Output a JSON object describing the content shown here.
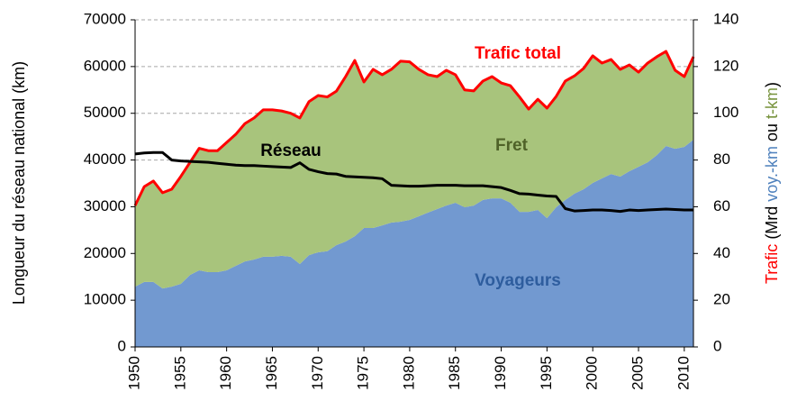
{
  "chart_data": {
    "type": "stacked-area-line",
    "ylabel": "Longueur du réseau national (km)",
    "y2label_parts": [
      {
        "text": "Trafic",
        "color": "#ff0000"
      },
      {
        "text": " (Mrd ",
        "color": "#000000"
      },
      {
        "text": "voy.-km",
        "color": "#4f81bd"
      },
      {
        "text": " ou ",
        "color": "#000000"
      },
      {
        "text": "t-km",
        "color": "#77933c"
      },
      {
        "text": ")",
        "color": "#000000"
      }
    ],
    "x": [
      1950,
      1951,
      1952,
      1953,
      1954,
      1955,
      1956,
      1957,
      1958,
      1959,
      1960,
      1961,
      1962,
      1963,
      1964,
      1965,
      1966,
      1967,
      1968,
      1969,
      1970,
      1971,
      1972,
      1973,
      1974,
      1975,
      1976,
      1977,
      1978,
      1979,
      1980,
      1981,
      1982,
      1983,
      1984,
      1985,
      1986,
      1987,
      1988,
      1989,
      1990,
      1991,
      1992,
      1993,
      1994,
      1995,
      1996,
      1997,
      1998,
      1999,
      2000,
      2001,
      2002,
      2003,
      2004,
      2005,
      2006,
      2007,
      2008,
      2009,
      2010,
      2011
    ],
    "xlim": [
      1950,
      2011
    ],
    "xticks": [
      1950,
      1955,
      1960,
      1965,
      1970,
      1975,
      1980,
      1985,
      1990,
      1995,
      2000,
      2005,
      2010
    ],
    "ylim": [
      0,
      70000
    ],
    "yticks": [
      0,
      10000,
      20000,
      30000,
      40000,
      50000,
      60000,
      70000
    ],
    "y2lim": [
      0,
      140
    ],
    "y2ticks": [
      0,
      20,
      40,
      60,
      80,
      100,
      120,
      140
    ],
    "grid": true,
    "series": [
      {
        "name": "Voyageurs",
        "kind": "area",
        "axis": "y2",
        "color": "#7299d0",
        "label_color": "#2e5d9e",
        "values": [
          25.8,
          27.8,
          27.8,
          25,
          25.8,
          27,
          30.8,
          32.8,
          32,
          32,
          32.8,
          34.7,
          36.6,
          37.4,
          38.6,
          38.6,
          39,
          38.6,
          35.5,
          39.3,
          40.5,
          41,
          43.6,
          45.1,
          47.4,
          50.9,
          50.9,
          52,
          53.2,
          53.6,
          54.4,
          55.9,
          57.5,
          59,
          60.5,
          61.7,
          59.8,
          60.5,
          62.9,
          63.6,
          63.6,
          61.7,
          57.8,
          57.8,
          58.6,
          55.1,
          59.8,
          62.9,
          65.6,
          67.5,
          70.2,
          72.1,
          74,
          72.9,
          75.2,
          77.1,
          79,
          82.1,
          86,
          84.8,
          85.6,
          88.7
        ]
      },
      {
        "name": "Fret",
        "kind": "area",
        "axis": "y2",
        "color": "#a8c47c",
        "label_color": "#4f6228",
        "values": [
          34.7,
          40.8,
          43.2,
          41,
          41.7,
          46,
          48.2,
          52.2,
          52,
          52,
          54.7,
          56.3,
          59,
          60.6,
          62.9,
          62.9,
          62,
          61.4,
          62.5,
          65.7,
          67.1,
          66,
          65.9,
          70.6,
          75.2,
          62.5,
          67.9,
          64.5,
          65.6,
          68.7,
          67.6,
          62.9,
          59,
          56.7,
          57.9,
          54.8,
          50.2,
          49.1,
          50.9,
          52.1,
          49.4,
          50.1,
          49.2,
          44,
          47.4,
          47.1,
          47.4,
          50.9,
          50.4,
          51.7,
          54.4,
          49.4,
          49,
          45.9,
          45.5,
          40.5,
          42.5,
          42.1,
          40.5,
          33.6,
          30.1,
          35.5
        ]
      },
      {
        "name": "Trafic total",
        "kind": "line",
        "axis": "y2",
        "color": "#ff0000",
        "label_color": "#ff0000",
        "values": [
          60.5,
          68.6,
          71,
          66,
          67.5,
          73,
          79,
          85,
          84,
          84,
          87.5,
          91,
          95.6,
          98,
          101.5,
          101.5,
          101,
          100,
          98,
          105,
          107.6,
          107,
          109.5,
          115.7,
          122.6,
          113.4,
          118.8,
          116.5,
          118.8,
          122.3,
          122,
          118.8,
          116.5,
          115.7,
          118.4,
          116.5,
          110,
          109.6,
          113.8,
          115.7,
          113,
          111.8,
          107,
          101.8,
          106,
          102.2,
          107.2,
          113.8,
          116,
          119.2,
          124.6,
          121.5,
          123,
          118.8,
          120.7,
          117.6,
          121.5,
          124.2,
          126.5,
          118.4,
          115.7,
          124.2
        ]
      },
      {
        "name": "Réseau",
        "kind": "line",
        "axis": "y",
        "color": "#000000",
        "label_color": "#000000",
        "values": [
          41300,
          41500,
          41600,
          41600,
          40000,
          39800,
          39700,
          39600,
          39500,
          39300,
          39100,
          38900,
          38800,
          38800,
          38700,
          38600,
          38500,
          38400,
          39400,
          38000,
          37500,
          37100,
          37000,
          36500,
          36400,
          36300,
          36200,
          36000,
          34600,
          34500,
          34400,
          34400,
          34500,
          34600,
          34600,
          34600,
          34500,
          34500,
          34500,
          34300,
          34100,
          33500,
          32800,
          32700,
          32500,
          32300,
          32200,
          29600,
          29100,
          29200,
          29300,
          29300,
          29200,
          29000,
          29300,
          29200,
          29300,
          29400,
          29500,
          29400,
          29300,
          29300
        ]
      }
    ]
  }
}
